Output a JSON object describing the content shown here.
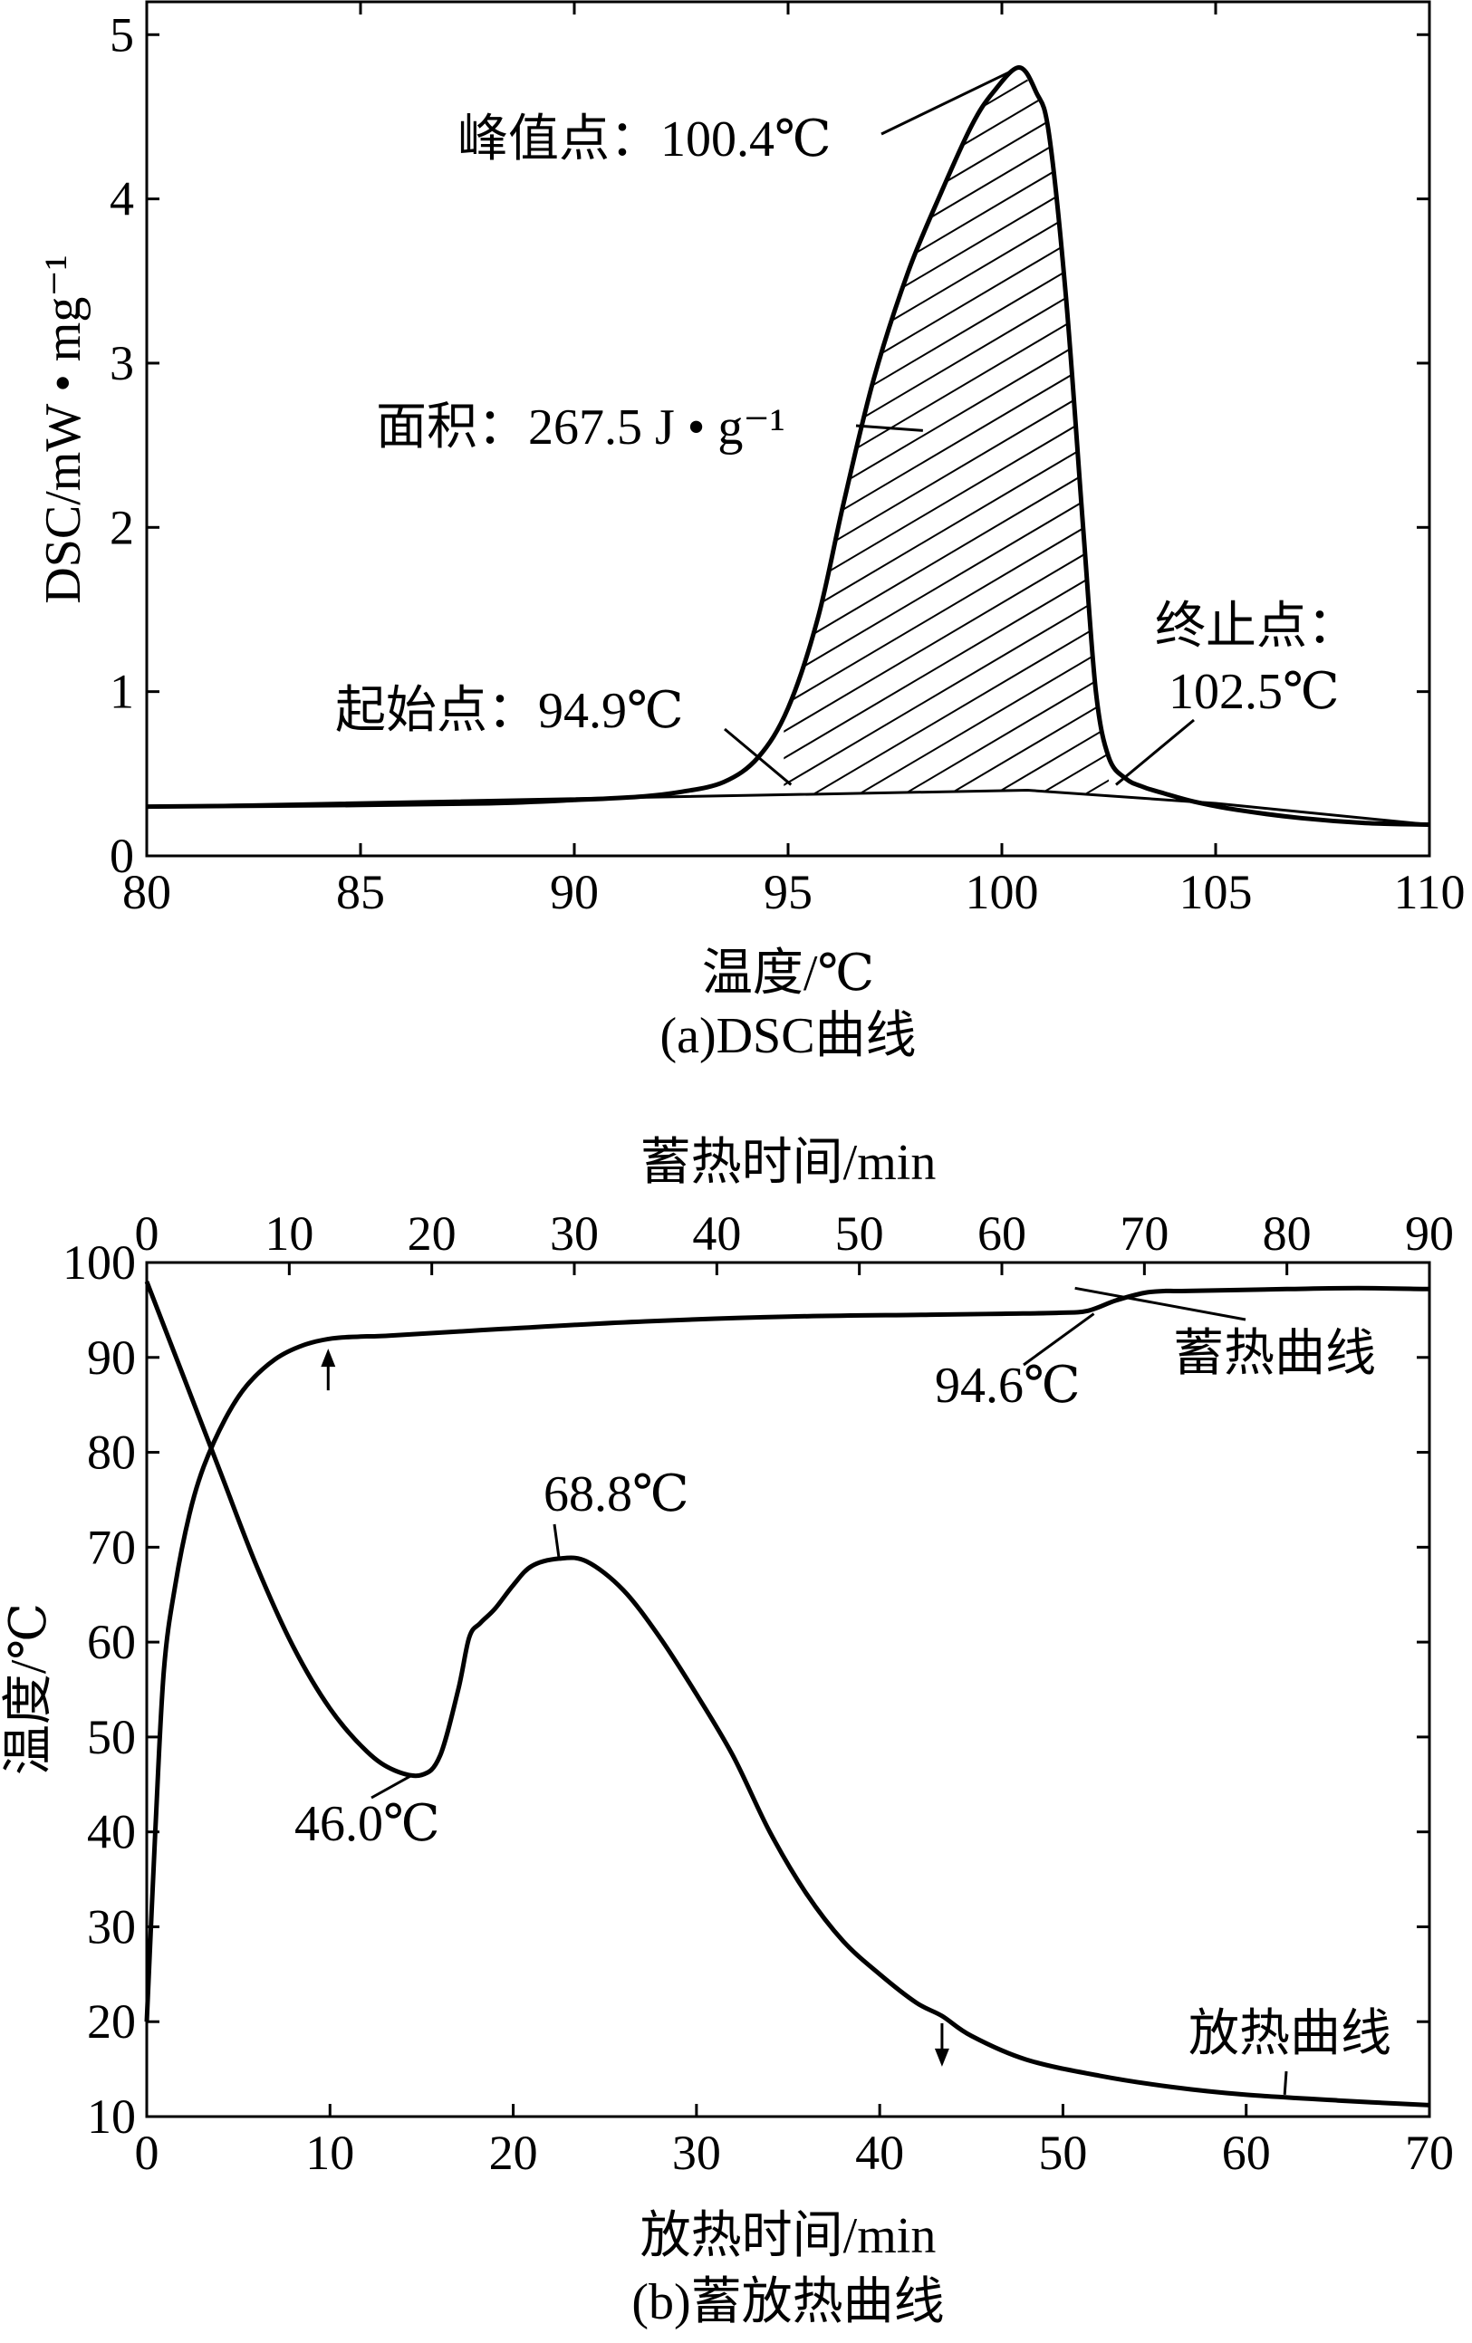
{
  "chart_data": [
    {
      "panel": "a",
      "type": "line",
      "caption": "(a)DSC曲线",
      "xlabel": "温度/℃",
      "ylabel": "DSC/mW • mg⁻¹",
      "xlim": [
        80,
        110
      ],
      "ylim": [
        0,
        5.2
      ],
      "x_ticks": [
        80,
        85,
        90,
        95,
        100,
        105,
        110
      ],
      "y_ticks": [
        0,
        1,
        2,
        3,
        4,
        5
      ],
      "series": [
        {
          "name": "DSC curve",
          "x": [
            80,
            85,
            88,
            90,
            91.5,
            92.5,
            93.5,
            94.3,
            95,
            95.7,
            96.3,
            97,
            97.8,
            98.6,
            99.3,
            99.8,
            100.4,
            100.8,
            101.1,
            101.5,
            101.9,
            102.2,
            102.5,
            102.9,
            103.3,
            103.8,
            104.5,
            105.5,
            107,
            108.5,
            110
          ],
          "y": [
            0.3,
            0.31,
            0.32,
            0.34,
            0.36,
            0.39,
            0.45,
            0.6,
            0.9,
            1.45,
            2.15,
            2.9,
            3.55,
            4.05,
            4.45,
            4.65,
            4.8,
            4.65,
            4.4,
            3.4,
            2.0,
            1.0,
            0.6,
            0.47,
            0.42,
            0.38,
            0.33,
            0.28,
            0.23,
            0.2,
            0.19
          ]
        }
      ],
      "baseline": {
        "x": [
          80,
          100.6,
          105,
          110
        ],
        "y": [
          0.3,
          0.4,
          0.32,
          0.19
        ]
      },
      "integration": {
        "from": 94.9,
        "to": 102.5
      },
      "annotations": [
        {
          "text": "峰值点：100.4℃",
          "x": 100.4,
          "y": 4.8
        },
        {
          "text": "面积：267.5 J • g⁻¹",
          "x": 97.2,
          "y": 2.7
        },
        {
          "text": "起始点：94.9℃",
          "x": 94.9,
          "y": 0.4
        },
        {
          "text_line1": "终止点：",
          "text_line2": "102.5℃",
          "x": 102.5,
          "y": 0.4
        }
      ]
    },
    {
      "panel": "b",
      "type": "line",
      "caption": "(b)蓄放热曲线",
      "xlabel_bottom": "放热时间/min",
      "xlabel_top": "蓄热时间/min",
      "ylabel": "温度/℃",
      "xlim_bottom": [
        0,
        70
      ],
      "xlim_top": [
        0,
        90
      ],
      "ylim": [
        10,
        100
      ],
      "x_ticks_bottom": [
        0,
        10,
        20,
        30,
        40,
        50,
        60,
        70
      ],
      "x_ticks_top": [
        0,
        10,
        20,
        30,
        40,
        50,
        60,
        70,
        80,
        90
      ],
      "y_ticks": [
        10,
        20,
        30,
        40,
        50,
        60,
        70,
        80,
        90,
        100
      ],
      "series": [
        {
          "name": "蓄热曲线",
          "axis": "top",
          "x": [
            0,
            0.6,
            1.2,
            2,
            3,
            4,
            5.5,
            7,
            9,
            11,
            13,
            15,
            17,
            25,
            35,
            45,
            55,
            60,
            64,
            66,
            68,
            70,
            71.5,
            73,
            80,
            85,
            90
          ],
          "y": [
            20,
            40,
            57,
            66,
            73.5,
            78.5,
            83.5,
            87,
            89.8,
            91.3,
            92,
            92.2,
            92.3,
            93,
            93.8,
            94.3,
            94.5,
            94.6,
            94.7,
            94.9,
            96,
            96.8,
            97,
            97,
            97.2,
            97.3,
            97.2
          ]
        },
        {
          "name": "放热曲线",
          "axis": "bottom",
          "x": [
            0,
            2,
            4,
            6,
            8,
            10,
            12,
            13.5,
            15,
            16,
            17,
            17.6,
            18.2,
            19,
            20,
            21,
            22.5,
            24,
            26,
            28,
            30,
            32,
            34,
            36,
            38,
            40,
            42,
            43.4,
            45,
            48,
            52,
            56,
            60,
            65,
            70
          ],
          "y": [
            98,
            88,
            78,
            68,
            59.5,
            53,
            48.5,
            46.5,
            46,
            48,
            55,
            60.5,
            62,
            63.5,
            66,
            68,
            68.8,
            68.5,
            65.5,
            60.5,
            54.5,
            48,
            40,
            33.5,
            28.5,
            25,
            22,
            20.6,
            18.5,
            16,
            14.3,
            13.1,
            12.3,
            11.7,
            11.2
          ]
        }
      ],
      "markers": [
        {
          "type": "arrow-up",
          "axis": "bottom",
          "x": 10,
          "y": 91.3
        },
        {
          "type": "arrow-down",
          "axis": "bottom",
          "x": 43.4,
          "y": 20.6
        }
      ],
      "annotations": [
        {
          "text": "68.8℃",
          "x": 22.5,
          "y": 68.8
        },
        {
          "text": "46.0℃",
          "x": 14.5,
          "y": 46
        },
        {
          "text": "94.6℃",
          "x": 50.5,
          "y": 94.6
        },
        {
          "text": "蓄热曲线",
          "x": 65,
          "y": 97.3
        },
        {
          "text": "放热曲线",
          "x": 62,
          "y": 12.3
        }
      ]
    }
  ]
}
